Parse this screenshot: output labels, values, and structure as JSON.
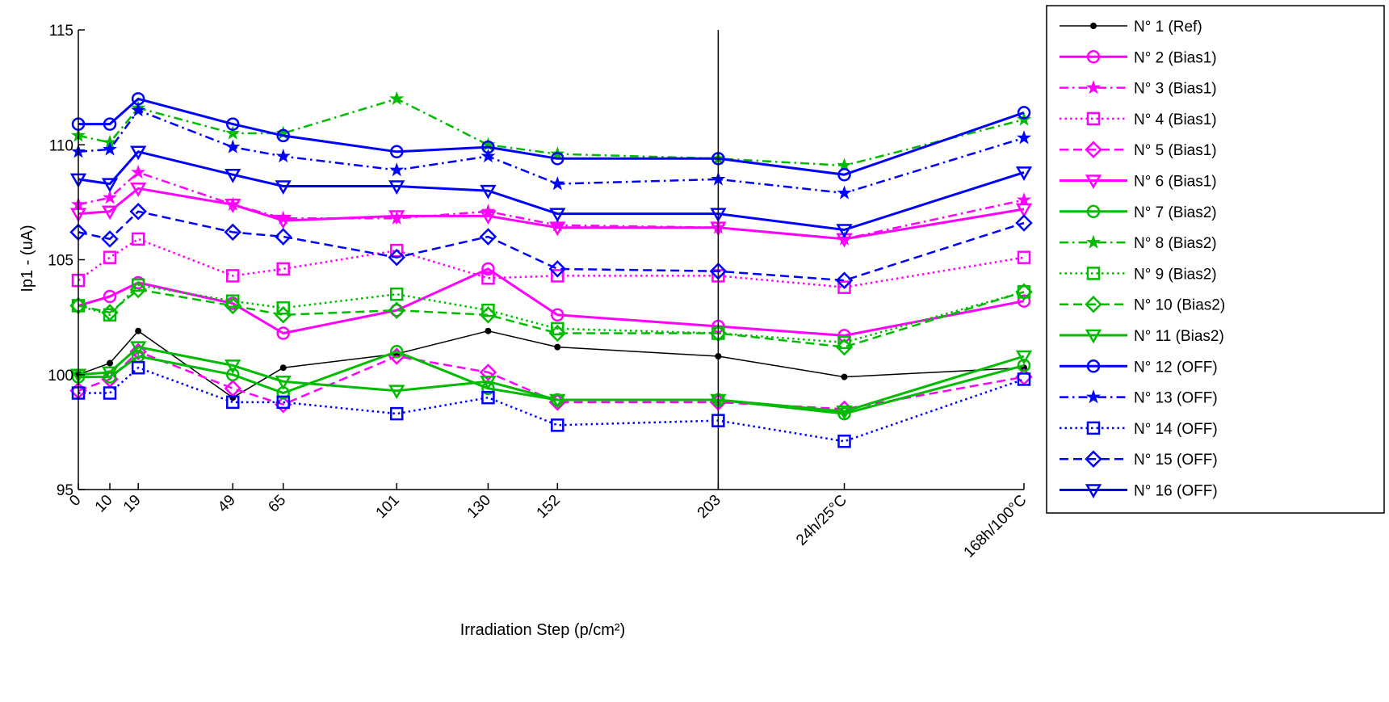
{
  "chart_data": {
    "type": "line",
    "xlabel": "Irradiation Step (p/cm²)",
    "ylabel": "Ip1 - (uA)",
    "ylim": [
      95,
      115
    ],
    "yticks": [
      95,
      100,
      105,
      110,
      115
    ],
    "x_ticks": [
      "0",
      "10",
      "19",
      "49",
      "65",
      "101",
      "130",
      "152",
      "203",
      "24h/25°C",
      "168h/100°C"
    ],
    "x_numeric": [
      0,
      10,
      19,
      49,
      65,
      101,
      130,
      152,
      203,
      243,
      300
    ],
    "vertical_marker_at": "203",
    "legend_position": "right",
    "grid": false,
    "series": [
      {
        "name": "N° 1 (Ref)",
        "color": "#000000",
        "dash": "solid",
        "marker": "dot",
        "width": 1.5,
        "values": [
          100.0,
          100.5,
          101.9,
          99.0,
          100.3,
          100.9,
          101.9,
          101.2,
          100.8,
          99.9,
          100.3
        ]
      },
      {
        "name": "N° 2 (Bias1)",
        "color": "#ff00ff",
        "dash": "solid",
        "marker": "circle",
        "width": 3,
        "values": [
          103.0,
          103.4,
          104.0,
          103.1,
          101.8,
          102.8,
          104.6,
          102.6,
          102.1,
          101.7,
          103.2
        ]
      },
      {
        "name": "N° 3 (Bias1)",
        "color": "#ff00ff",
        "dash": "dashdot",
        "marker": "star",
        "width": 2.5,
        "values": [
          107.4,
          107.7,
          108.8,
          107.4,
          106.8,
          106.8,
          107.1,
          106.5,
          106.4,
          105.9,
          107.6
        ]
      },
      {
        "name": "N° 4 (Bias1)",
        "color": "#ff00ff",
        "dash": "dotted",
        "marker": "square",
        "width": 2.5,
        "values": [
          104.1,
          105.1,
          105.9,
          104.3,
          104.6,
          105.4,
          104.2,
          104.3,
          104.3,
          103.8,
          105.1
        ]
      },
      {
        "name": "N° 5 (Bias1)",
        "color": "#ff00ff",
        "dash": "dashed",
        "marker": "diamond",
        "width": 2.5,
        "values": [
          99.3,
          99.8,
          101.0,
          99.4,
          98.7,
          100.8,
          100.1,
          98.8,
          98.8,
          98.5,
          99.9
        ]
      },
      {
        "name": "N° 6 (Bias1)",
        "color": "#ff00ff",
        "dash": "solid",
        "marker": "triangle",
        "width": 3,
        "values": [
          107.0,
          107.1,
          108.1,
          107.4,
          106.7,
          106.9,
          106.9,
          106.4,
          106.4,
          105.9,
          107.2
        ]
      },
      {
        "name": "N° 7 (Bias2)",
        "color": "#00bb00",
        "dash": "solid",
        "marker": "circle",
        "width": 3,
        "values": [
          99.9,
          99.9,
          100.8,
          100.0,
          99.2,
          101.0,
          99.4,
          98.9,
          98.9,
          98.3,
          100.4
        ]
      },
      {
        "name": "N° 8 (Bias2)",
        "color": "#00bb00",
        "dash": "dashdot",
        "marker": "star",
        "width": 2.5,
        "values": [
          110.4,
          110.1,
          111.6,
          110.5,
          110.5,
          112.0,
          110.0,
          109.6,
          109.4,
          109.1,
          111.1
        ]
      },
      {
        "name": "N° 9 (Bias2)",
        "color": "#00bb00",
        "dash": "dotted",
        "marker": "square",
        "width": 2.5,
        "values": [
          103.0,
          102.6,
          103.9,
          103.2,
          102.9,
          103.5,
          102.8,
          102.0,
          101.8,
          101.4,
          103.6
        ]
      },
      {
        "name": "N° 10 (Bias2)",
        "color": "#00bb00",
        "dash": "dashed",
        "marker": "diamond",
        "width": 2.5,
        "values": [
          103.0,
          102.7,
          103.7,
          103.0,
          102.6,
          102.8,
          102.6,
          101.8,
          101.8,
          101.2,
          103.6
        ]
      },
      {
        "name": "N° 11 (Bias2)",
        "color": "#00bb00",
        "dash": "solid",
        "marker": "triangle",
        "width": 3,
        "values": [
          100.0,
          100.1,
          101.2,
          100.4,
          99.7,
          99.3,
          99.7,
          98.9,
          98.9,
          98.4,
          100.8
        ]
      },
      {
        "name": "N° 12 (OFF)",
        "color": "#0000ff",
        "dash": "solid",
        "marker": "circle",
        "width": 3,
        "values": [
          110.9,
          110.9,
          112.0,
          110.9,
          110.4,
          109.7,
          109.9,
          109.4,
          109.4,
          108.7,
          111.4
        ]
      },
      {
        "name": "N° 13 (OFF)",
        "color": "#0000ff",
        "dash": "dashdot",
        "marker": "star",
        "width": 2.5,
        "values": [
          109.7,
          109.8,
          111.5,
          109.9,
          109.5,
          108.9,
          109.5,
          108.3,
          108.5,
          107.9,
          110.3
        ]
      },
      {
        "name": "N° 14 (OFF)",
        "color": "#0000ff",
        "dash": "dotted",
        "marker": "square",
        "width": 2.5,
        "values": [
          99.2,
          99.2,
          100.3,
          98.8,
          98.8,
          98.3,
          99.0,
          97.8,
          98.0,
          97.1,
          99.8
        ]
      },
      {
        "name": "N° 15 (OFF)",
        "color": "#0000ff",
        "dash": "dashed",
        "marker": "diamond",
        "width": 2.5,
        "values": [
          106.2,
          105.9,
          107.1,
          106.2,
          106.0,
          105.1,
          106.0,
          104.6,
          104.5,
          104.1,
          106.6
        ]
      },
      {
        "name": "N° 16 (OFF)",
        "color": "#0000ff",
        "dash": "solid",
        "marker": "triangle",
        "width": 3,
        "values": [
          108.5,
          108.3,
          109.7,
          108.7,
          108.2,
          108.2,
          108.0,
          107.0,
          107.0,
          106.3,
          108.8
        ]
      }
    ]
  }
}
